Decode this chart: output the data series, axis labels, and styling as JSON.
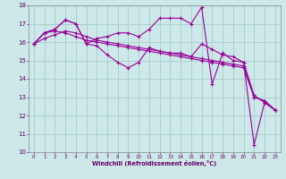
{
  "xlabel": "Windchill (Refroidissement éolien,°C)",
  "bg_color": "#cce8e8",
  "grid_color": "#aacccc",
  "line_color": "#990099",
  "xlim": [
    -0.5,
    23.5
  ],
  "ylim": [
    10,
    18
  ],
  "xticks": [
    0,
    1,
    2,
    3,
    4,
    5,
    6,
    7,
    8,
    9,
    10,
    11,
    12,
    13,
    14,
    15,
    16,
    17,
    18,
    19,
    20,
    21,
    22,
    23
  ],
  "yticks": [
    10,
    11,
    12,
    13,
    14,
    15,
    16,
    17,
    18
  ],
  "series": [
    [
      15.9,
      16.5,
      16.7,
      17.2,
      17.0,
      15.9,
      16.2,
      16.3,
      16.5,
      16.5,
      16.3,
      16.7,
      17.3,
      17.3,
      17.3,
      17.0,
      17.9,
      13.7,
      15.4,
      15.0,
      14.9,
      10.4,
      12.7,
      12.3
    ],
    [
      15.9,
      16.5,
      16.7,
      17.2,
      17.0,
      15.9,
      15.8,
      15.3,
      14.9,
      14.6,
      14.9,
      15.7,
      15.5,
      15.4,
      15.4,
      15.2,
      15.9,
      15.6,
      15.3,
      15.2,
      14.9,
      13.1,
      12.7,
      12.3
    ],
    [
      15.9,
      16.5,
      16.6,
      16.5,
      16.3,
      16.1,
      16.0,
      15.9,
      15.8,
      15.7,
      15.6,
      15.5,
      15.4,
      15.3,
      15.2,
      15.1,
      15.0,
      14.9,
      14.8,
      14.7,
      14.6,
      13.0,
      12.8,
      12.3
    ],
    [
      15.9,
      16.2,
      16.4,
      16.6,
      16.5,
      16.3,
      16.1,
      16.0,
      15.9,
      15.8,
      15.7,
      15.6,
      15.5,
      15.4,
      15.3,
      15.2,
      15.1,
      15.0,
      14.9,
      14.8,
      14.7,
      13.0,
      12.8,
      12.3
    ]
  ]
}
